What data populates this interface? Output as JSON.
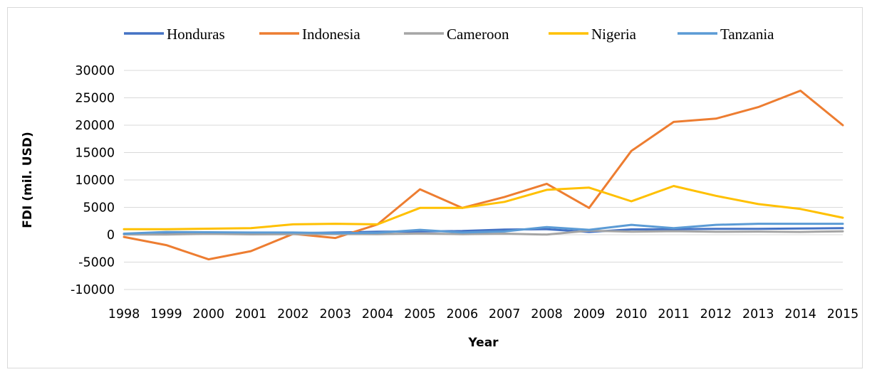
{
  "chart_data": {
    "type": "line",
    "title": "",
    "xlabel": "Year",
    "ylabel": "FDI (mil. USD)",
    "ylim": [
      -10000,
      30000
    ],
    "yticks": [
      30000,
      25000,
      20000,
      15000,
      10000,
      5000,
      0,
      -5000,
      -10000
    ],
    "categories": [
      "1998",
      "1999",
      "2000",
      "2001",
      "2002",
      "2003",
      "2004",
      "2005",
      "2006",
      "2007",
      "2008",
      "2009",
      "2010",
      "2011",
      "2012",
      "2013",
      "2014",
      "2015"
    ],
    "grid": true,
    "legend_position": "top",
    "series": [
      {
        "name": "Honduras",
        "color": "#4472c4",
        "values": [
          100,
          230,
          380,
          300,
          270,
          400,
          550,
          600,
          670,
          930,
          1010,
          510,
          970,
          1010,
          1060,
          1060,
          1140,
          1200
        ]
      },
      {
        "name": "Indonesia",
        "color": "#ed7d31",
        "values": [
          -400,
          -1900,
          -4500,
          -3000,
          150,
          -600,
          1900,
          8300,
          4900,
          6900,
          9300,
          4900,
          15300,
          20600,
          21200,
          23300,
          26300,
          20000
        ]
      },
      {
        "name": "Cameroon",
        "color": "#a5a5a5",
        "values": [
          50,
          40,
          160,
          70,
          100,
          120,
          100,
          230,
          100,
          190,
          20,
          740,
          540,
          650,
          530,
          570,
          500,
          620
        ]
      },
      {
        "name": "Nigeria",
        "color": "#ffc000",
        "values": [
          1000,
          1000,
          1100,
          1200,
          1900,
          2000,
          1900,
          4900,
          4900,
          6000,
          8200,
          8600,
          6100,
          8900,
          7100,
          5600,
          4700,
          3100
        ]
      },
      {
        "name": "Tanzania",
        "color": "#5b9bd5",
        "values": [
          200,
          500,
          450,
          400,
          400,
          300,
          350,
          900,
          400,
          600,
          1400,
          900,
          1800,
          1200,
          1800,
          2000,
          2000,
          2000
        ]
      }
    ]
  }
}
